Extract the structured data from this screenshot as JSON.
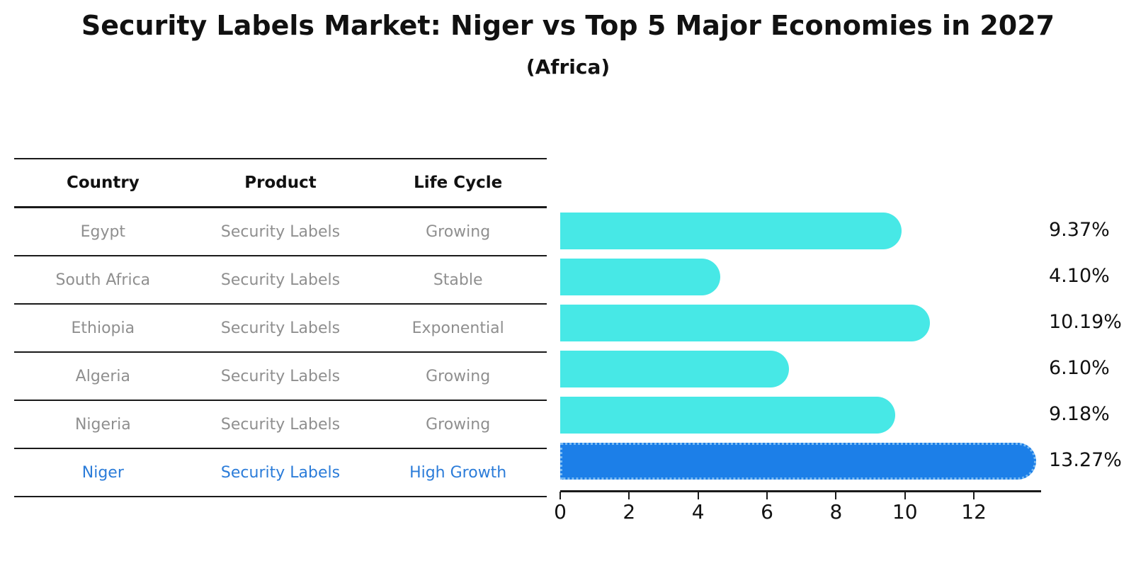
{
  "title": "Security Labels Market: Niger vs Top 5 Major Economies in 2027",
  "subtitle": "(Africa)",
  "table": {
    "headers": [
      "Country",
      "Product",
      "Life Cycle"
    ],
    "rows": [
      {
        "country": "Egypt",
        "product": "Security Labels",
        "life_cycle": "Growing",
        "highlight": false
      },
      {
        "country": "South Africa",
        "product": "Security Labels",
        "life_cycle": "Stable",
        "highlight": false
      },
      {
        "country": "Ethiopia",
        "product": "Security Labels",
        "life_cycle": "Exponential",
        "highlight": false
      },
      {
        "country": "Algeria",
        "product": "Security Labels",
        "life_cycle": "Growing",
        "highlight": false
      },
      {
        "country": "Nigeria",
        "product": "Security Labels",
        "life_cycle": "Growing",
        "highlight": false
      },
      {
        "country": "Niger",
        "product": "Security Labels",
        "life_cycle": "High Growth",
        "highlight": true
      }
    ]
  },
  "chart_data": {
    "type": "bar",
    "orientation": "horizontal",
    "title": "Security Labels Market: Niger vs Top 5 Major Economies in 2027",
    "subtitle": "(Africa)",
    "categories": [
      "Egypt",
      "South Africa",
      "Ethiopia",
      "Algeria",
      "Nigeria",
      "Niger"
    ],
    "values": [
      9.37,
      4.1,
      10.19,
      6.1,
      9.18,
      13.27
    ],
    "value_labels": [
      "9.37%",
      "4.10%",
      "10.19%",
      "6.10%",
      "9.18%",
      "13.27%"
    ],
    "x_ticks": [
      "0",
      "2",
      "4",
      "6",
      "8",
      "10",
      "12"
    ],
    "xlim": [
      0,
      13.95
    ],
    "grid": false,
    "legend": false,
    "highlight_index": 5,
    "colors": {
      "bar": "#47E8E6",
      "highlight_bar": "#1C7FE8",
      "highlight_border": "#79BAF2",
      "highlight_text": "#2B7CD9",
      "table_text": "#8F8F8F",
      "text": "#111111"
    }
  }
}
